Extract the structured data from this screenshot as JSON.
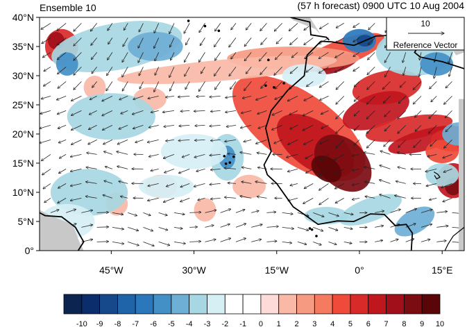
{
  "title_left": "Ensemble 10",
  "title_right": "(57 h forecast) 0900 UTC 10 Aug 2004",
  "lat_ticks": [
    {
      "value": 40,
      "label": "40°N"
    },
    {
      "value": 35,
      "label": "35°N"
    },
    {
      "value": 30,
      "label": "30°N"
    },
    {
      "value": 25,
      "label": "25°N"
    },
    {
      "value": 20,
      "label": "20°N"
    },
    {
      "value": 15,
      "label": "15°N"
    },
    {
      "value": 10,
      "label": "10°N"
    },
    {
      "value": 5,
      "label": "5°N"
    },
    {
      "value": 0,
      "label": "0°"
    }
  ],
  "lon_ticks": [
    {
      "value": -45,
      "label": "45°W"
    },
    {
      "value": -30,
      "label": "30°W"
    },
    {
      "value": -15,
      "label": "15°W"
    },
    {
      "value": 0,
      "label": "0°"
    },
    {
      "value": 15,
      "label": "15°E"
    }
  ],
  "map_extent": {
    "lon_min": -58,
    "lon_max": 19,
    "lat_min": 0,
    "lat_max": 40
  },
  "reference_vector": {
    "magnitude_label": "10",
    "caption": "Reference Vector"
  },
  "colorbar": {
    "labels": [
      "-10",
      "-9",
      "-8",
      "-7",
      "-6",
      "-5",
      "-4",
      "-3",
      "-2",
      "-1",
      "0",
      "1",
      "2",
      "3",
      "4",
      "5",
      "6",
      "7",
      "8",
      "9",
      "10"
    ],
    "colors": [
      "#0c2450",
      "#0b2d6b",
      "#15498b",
      "#1f64a8",
      "#2a78bb",
      "#4390c7",
      "#6eafd5",
      "#a6d7e2",
      "#d5eff5",
      "#ffffff",
      "#ffffff",
      "#fcdbd9",
      "#f9b9a6",
      "#f69a82",
      "#f47a60",
      "#ef4a3a",
      "#d92a2a",
      "#c0161e",
      "#a1101a",
      "#7b0c12",
      "#5a0508"
    ]
  },
  "colors": {
    "land_gray": "#c8c8c8",
    "coast": "#000000",
    "vector": "#222222"
  }
}
